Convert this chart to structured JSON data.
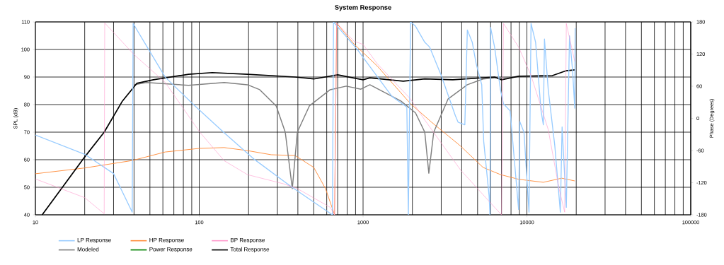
{
  "chart_data": {
    "type": "line",
    "title": "System Response",
    "xlabel": null,
    "ylabel": "SPL (dB)",
    "y2label": "Phase (Degrees)",
    "log": "x",
    "grid": true,
    "legend": "bottom",
    "marker": "none",
    "line_style": "solid",
    "xlim": [
      10,
      100000
    ],
    "xticks": [
      10,
      100,
      1000,
      10000,
      100000
    ],
    "ylim": [
      40,
      110
    ],
    "yticks": [
      40,
      50,
      60,
      70,
      80,
      90,
      100,
      110
    ],
    "y2lim": [
      -180,
      180
    ],
    "y2ticks": [
      -180,
      -120,
      -60,
      0,
      60,
      120,
      180
    ],
    "series": [
      {
        "name": "LP Response",
        "color": "#99ccff",
        "axis": "y2",
        "x": [
          10,
          20,
          30,
          39,
          39.5,
          49,
          62,
          92,
          141,
          218,
          370,
          650,
          660,
          920,
          1500,
          1850,
          1890,
          1950,
          2090,
          2380,
          2550,
          3000,
          3660,
          3800,
          4180,
          4330,
          4640,
          4900,
          5300,
          5450,
          5880,
          5950,
          6000,
          6350,
          6900,
          7200,
          7900,
          8900,
          9050,
          9600,
          10300,
          10600,
          11300,
          12200,
          12600,
          12800,
          13500,
          14800,
          16000,
          16400,
          17400,
          18200,
          19000,
          19600,
          19700
        ],
        "values": [
          -31,
          -67,
          -103,
          -175,
          177,
          129,
          77,
          26,
          -26,
          -77,
          -129,
          -180,
          180,
          129,
          41,
          21,
          -180,
          180,
          172,
          142,
          133,
          80,
          5,
          -7,
          -12,
          165,
          142,
          102,
          63,
          -43,
          -145,
          -180,
          170,
          133,
          53,
          27,
          14,
          -170,
          -6,
          -26,
          -175,
          177,
          142,
          14,
          -12,
          148,
          53,
          -51,
          -175,
          -16,
          -166,
          154,
          89,
          19,
          168
        ]
      },
      {
        "name": "HP Response",
        "color": "#ff8c3a",
        "x": [
          10,
          20,
          39,
          62,
          100,
          142,
          197,
          275,
          385,
          500,
          590,
          670,
          690,
          880,
          1220,
          1950,
          2620,
          3930,
          5400,
          6900,
          8900,
          12600,
          16300,
          19600
        ],
        "values": [
          54.9,
          57,
          59.7,
          62.8,
          64.1,
          64.4,
          63.3,
          61.8,
          61.5,
          57.2,
          49.5,
          40,
          109.5,
          102,
          94,
          80.3,
          73.6,
          65,
          57.2,
          54.6,
          52.9,
          51.8,
          53.3,
          52.3
        ]
      },
      {
        "name": "BP Response",
        "color": "#ff99cc",
        "axis": "y2",
        "x": [
          10,
          20,
          26.3,
          26.5,
          40,
          62,
          101,
          142,
          197,
          326,
          397,
          630,
          670,
          690,
          880,
          1000,
          1220,
          1950,
          2380,
          3930,
          6350,
          7000,
          7200,
          8900,
          10600,
          13500,
          15700,
          17000,
          17400,
          19600
        ],
        "values": [
          -113,
          -148,
          -178,
          178,
          119,
          67,
          -26,
          -79,
          -105,
          -122,
          -131,
          -166,
          -180,
          178,
          144,
          138,
          102,
          36,
          -3,
          -96,
          -166,
          -180,
          177,
          133,
          80,
          -21,
          -131,
          -175,
          177,
          106
        ]
      },
      {
        "name": "Modeled",
        "color": "#808080",
        "x": [
          40,
          47.6,
          86,
          142,
          197,
          234,
          295,
          335,
          370,
          397,
          470,
          630,
          790,
          970,
          1100,
          1700,
          2090,
          2380,
          2520,
          2700,
          3300,
          4330,
          5400,
          6350,
          12600
        ],
        "values": [
          87.2,
          88,
          87,
          88,
          87.2,
          85.4,
          79.5,
          70,
          49.5,
          70,
          79.5,
          85.4,
          86.7,
          85.6,
          87.2,
          81.3,
          77,
          70,
          55.1,
          70,
          82,
          87.2,
          89.3,
          89.7,
          90.5
        ]
      },
      {
        "name": "Power Response",
        "color": "#008000"
      },
      {
        "name": "Total Response",
        "color": "#000000",
        "x": [
          11,
          20,
          26.3,
          34,
          41.6,
          52.5,
          86,
          120,
          197,
          385,
          500,
          700,
          1000,
          1100,
          1760,
          2380,
          3530,
          6350,
          7000,
          8900,
          14300,
          17400,
          19600
        ],
        "values": [
          40,
          61,
          70,
          81.3,
          87.7,
          89,
          91,
          91.6,
          91,
          90,
          89.3,
          90.8,
          89,
          89.7,
          88.5,
          89.3,
          89,
          90,
          89,
          90.3,
          90.5,
          92.3,
          92.6
        ]
      }
    ]
  }
}
